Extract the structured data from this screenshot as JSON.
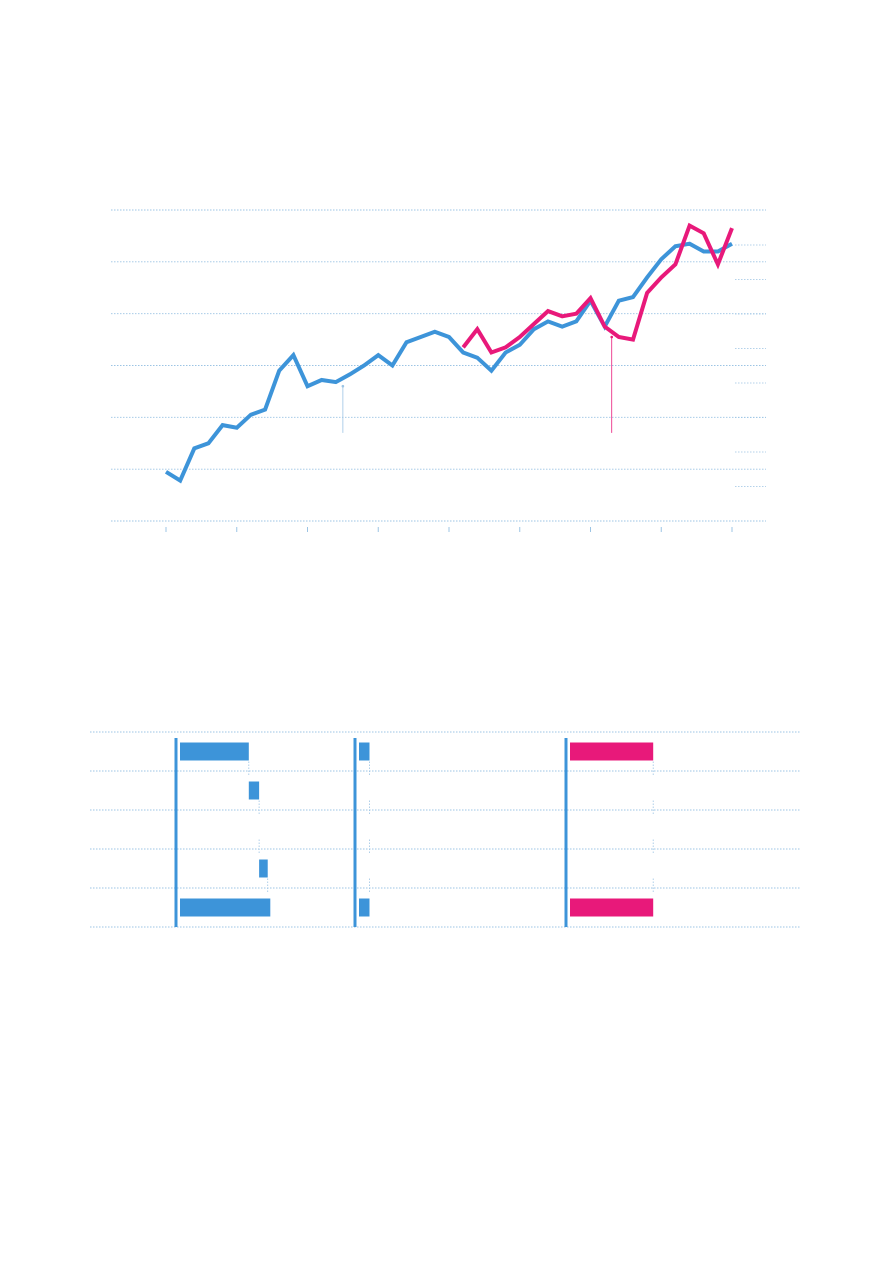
{
  "colors": {
    "series_a": "#3d94d9",
    "series_b": "#e8197a",
    "grid": "#9cc4e4",
    "annotation_a": "#9cc4e4",
    "annotation_b": "#e8197a"
  },
  "chart_data": [
    {
      "type": "line",
      "title": "",
      "xlabel": "",
      "ylabel": "",
      "xlim": [
        0,
        40
      ],
      "ylim": [
        0,
        60
      ],
      "grid": true,
      "x_ticks": [
        0,
        5,
        10,
        15,
        20,
        25,
        30,
        35,
        40
      ],
      "series": [
        {
          "values": [
            [
              0,
              9.5
            ],
            [
              1,
              7.8
            ],
            [
              2,
              14
            ],
            [
              3,
              15
            ],
            [
              4,
              18.5
            ],
            [
              5,
              18
            ],
            [
              6,
              20.5
            ],
            [
              7,
              21.5
            ],
            [
              8,
              29
            ],
            [
              9,
              32
            ],
            [
              10,
              26
            ],
            [
              11,
              27.2
            ],
            [
              12,
              26.8
            ],
            [
              13,
              28.3
            ],
            [
              14,
              30
            ],
            [
              15,
              32
            ],
            [
              16,
              30
            ],
            [
              17,
              34.5
            ],
            [
              18,
              35.5
            ],
            [
              19,
              36.5
            ],
            [
              20,
              35.5
            ],
            [
              21,
              32.5
            ],
            [
              22,
              31.5
            ],
            [
              23,
              29
            ],
            [
              24,
              32.5
            ],
            [
              25,
              34
            ],
            [
              26,
              37
            ],
            [
              27,
              38.5
            ],
            [
              28,
              37.5
            ],
            [
              29,
              38.5
            ],
            [
              30,
              42.5
            ],
            [
              31,
              37.5
            ],
            [
              32,
              42.5
            ],
            [
              33,
              43.2
            ],
            [
              34,
              47
            ],
            [
              35,
              50.5
            ],
            [
              36,
              53
            ],
            [
              37,
              53.5
            ],
            [
              38,
              52
            ],
            [
              39,
              52
            ],
            [
              40,
              53.5
            ]
          ]
        },
        {
          "values": [
            [
              21,
              33.5
            ],
            [
              22,
              37
            ],
            [
              23,
              32.5
            ],
            [
              24,
              33.5
            ],
            [
              25,
              35.5
            ],
            [
              26,
              38
            ],
            [
              27,
              40.5
            ],
            [
              28,
              39.5
            ],
            [
              29,
              40
            ],
            [
              30,
              43
            ],
            [
              31,
              37.5
            ],
            [
              32,
              35.5
            ],
            [
              33,
              35
            ],
            [
              34,
              44
            ],
            [
              35,
              47
            ],
            [
              36,
              49.5
            ],
            [
              37,
              57
            ],
            [
              38,
              55.5
            ],
            [
              39,
              49.5
            ],
            [
              40,
              56.5
            ]
          ]
        }
      ],
      "annotations": [
        {
          "x": 12.5,
          "y_from": 17,
          "y_to": 26
        },
        {
          "x": 31.5,
          "y_from": 17,
          "y_to": 35.5
        }
      ]
    },
    {
      "type": "bar",
      "orientation": "horizontal",
      "categories": [
        "",
        "",
        "",
        "",
        ""
      ],
      "series": [
        {
          "values": [
            8,
            1.2,
            0,
            1,
            10.5
          ]
        },
        {
          "values": [
            1,
            0,
            0,
            0,
            1
          ]
        },
        {
          "values": [
            8,
            0,
            0,
            0,
            8
          ]
        }
      ]
    }
  ]
}
